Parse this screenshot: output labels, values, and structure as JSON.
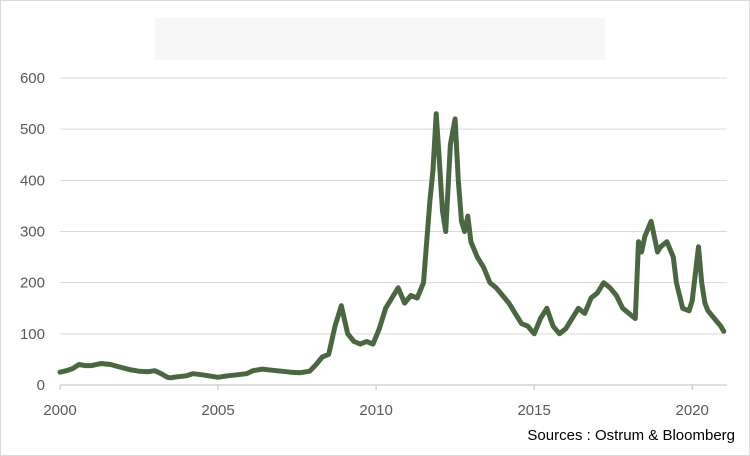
{
  "chart_data": {
    "type": "line",
    "title": "",
    "xlabel": "",
    "ylabel": "",
    "xlim": [
      2000,
      2021.1
    ],
    "ylim": [
      0,
      600
    ],
    "grid": true,
    "legend": "none",
    "x_ticks": [
      "2000",
      "2005",
      "2010",
      "2015",
      "2020"
    ],
    "y_ticks": [
      "0",
      "100",
      "200",
      "300",
      "400",
      "500",
      "600"
    ],
    "series": [
      {
        "color": "#4a6741",
        "x": [
          2000.0,
          2000.2,
          2000.4,
          2000.6,
          2000.8,
          2001.0,
          2001.3,
          2001.6,
          2001.9,
          2002.2,
          2002.5,
          2002.8,
          2003.0,
          2003.2,
          2003.4,
          2003.5,
          2003.7,
          2004.0,
          2004.2,
          2004.5,
          2004.8,
          2005.0,
          2005.3,
          2005.6,
          2005.9,
          2006.1,
          2006.4,
          2006.7,
          2007.0,
          2007.3,
          2007.6,
          2007.9,
          2008.1,
          2008.3,
          2008.5,
          2008.7,
          2008.9,
          2009.1,
          2009.3,
          2009.5,
          2009.7,
          2009.9,
          2010.1,
          2010.3,
          2010.5,
          2010.7,
          2010.9,
          2011.1,
          2011.3,
          2011.5,
          2011.7,
          2011.8,
          2011.9,
          2012.0,
          2012.1,
          2012.2,
          2012.35,
          2012.5,
          2012.6,
          2012.7,
          2012.8,
          2012.9,
          2013.0,
          2013.2,
          2013.4,
          2013.6,
          2013.8,
          2014.0,
          2014.2,
          2014.4,
          2014.6,
          2014.8,
          2015.0,
          2015.2,
          2015.4,
          2015.6,
          2015.8,
          2016.0,
          2016.2,
          2016.4,
          2016.6,
          2016.8,
          2017.0,
          2017.2,
          2017.4,
          2017.6,
          2017.8,
          2018.0,
          2018.2,
          2018.3,
          2018.4,
          2018.5,
          2018.7,
          2018.9,
          2019.0,
          2019.2,
          2019.4,
          2019.5,
          2019.7,
          2019.9,
          2020.0,
          2020.2,
          2020.3,
          2020.4,
          2020.5,
          2020.7,
          2020.9,
          2021.0
        ],
        "values": [
          25,
          28,
          32,
          40,
          38,
          38,
          42,
          40,
          35,
          30,
          27,
          26,
          28,
          22,
          15,
          14,
          16,
          18,
          22,
          20,
          17,
          15,
          18,
          20,
          22,
          28,
          31,
          29,
          27,
          25,
          24,
          27,
          40,
          55,
          60,
          115,
          155,
          100,
          85,
          80,
          85,
          80,
          110,
          150,
          170,
          190,
          160,
          175,
          170,
          200,
          360,
          420,
          530,
          440,
          340,
          300,
          470,
          520,
          400,
          320,
          300,
          330,
          280,
          250,
          230,
          200,
          190,
          175,
          160,
          140,
          120,
          115,
          100,
          130,
          150,
          115,
          100,
          110,
          130,
          150,
          140,
          170,
          180,
          200,
          190,
          175,
          150,
          140,
          130,
          280,
          260,
          290,
          320,
          260,
          270,
          280,
          250,
          200,
          150,
          145,
          165,
          270,
          200,
          160,
          145,
          130,
          115,
          105
        ]
      }
    ]
  },
  "footer": {
    "source": "Sources : Ostrum & Bloomberg"
  }
}
